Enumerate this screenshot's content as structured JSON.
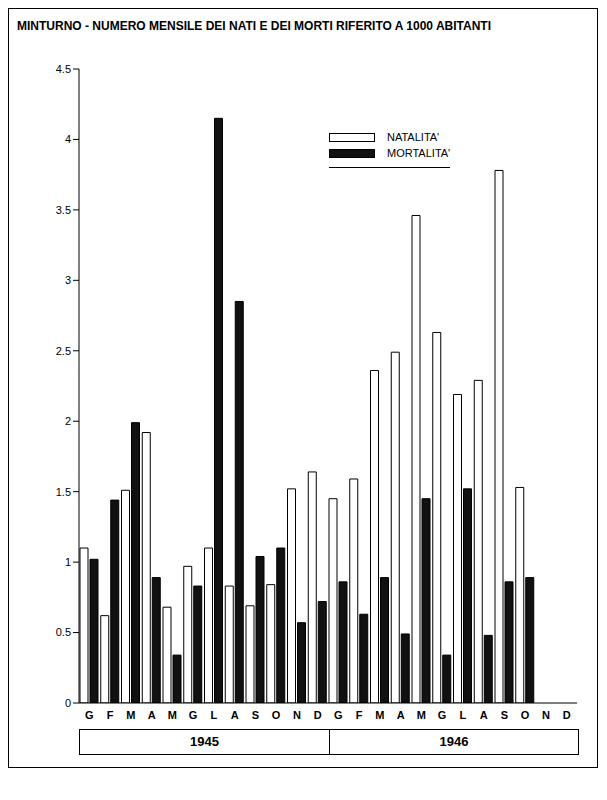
{
  "chart_data": {
    "type": "bar",
    "title": "MINTURNO - NUMERO MENSILE DEI NATI E DEI MORTI RIFERITO A 1000 ABITANTI",
    "categories": [
      "G",
      "F",
      "M",
      "A",
      "M",
      "G",
      "L",
      "A",
      "S",
      "O",
      "N",
      "D",
      "G",
      "F",
      "M",
      "A",
      "M",
      "G",
      "L",
      "A",
      "S",
      "O",
      "N",
      "D"
    ],
    "x_groups": [
      "1945",
      "1946"
    ],
    "series": [
      {
        "name": "NATALITA'",
        "color": "#ffffff",
        "values": [
          1.1,
          0.62,
          1.51,
          1.92,
          0.68,
          0.97,
          1.1,
          0.83,
          0.69,
          0.84,
          1.52,
          1.64,
          1.45,
          1.59,
          2.36,
          2.49,
          3.46,
          2.63,
          2.19,
          2.29,
          3.78,
          1.53,
          null,
          null
        ]
      },
      {
        "name": "MORTALITA'",
        "color": "#111111",
        "values": [
          1.02,
          1.44,
          1.99,
          0.89,
          0.34,
          0.83,
          4.15,
          2.85,
          1.04,
          1.1,
          0.57,
          0.72,
          0.86,
          0.63,
          0.89,
          0.49,
          1.45,
          0.34,
          1.52,
          0.48,
          0.86,
          0.89,
          null,
          null
        ]
      }
    ],
    "ylim": [
      0,
      4.5
    ],
    "yticks": [
      0,
      0.5,
      1,
      1.5,
      2,
      2.5,
      3,
      3.5,
      4,
      4.5
    ],
    "legend": "upper right"
  }
}
